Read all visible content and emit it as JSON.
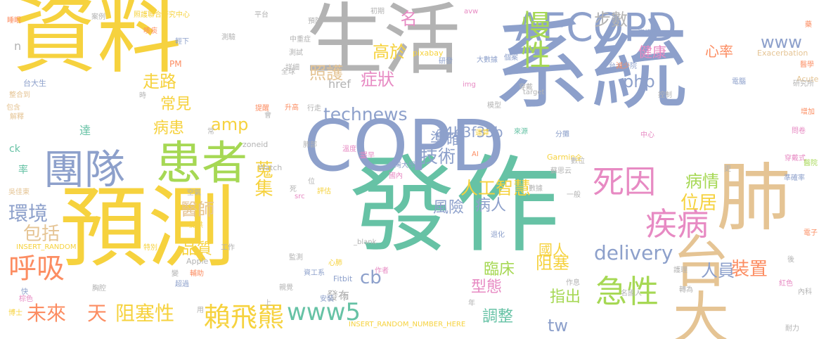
{
  "colors": {
    "yellow": "#f6d23e",
    "teal": "#66c2a5",
    "blue": "#8da0cb",
    "gray": "#b3b3b3",
    "green": "#a6d854",
    "tan": "#e5c494",
    "orange": "#fc8d62",
    "pink": "#e78ac3"
  },
  "words": [
    {
      "text": "資料",
      "color": "yellow"
    },
    {
      "text": "預測",
      "color": "yellow"
    },
    {
      "text": "系統",
      "color": "blue"
    },
    {
      "text": "發作",
      "color": "teal"
    },
    {
      "text": "生活",
      "color": "gray"
    },
    {
      "text": "COPD",
      "color": "blue"
    },
    {
      "text": "AECOPD",
      "color": "blue"
    },
    {
      "text": "肺",
      "color": "tan"
    },
    {
      "text": "台大",
      "color": "tan"
    },
    {
      "text": "患者",
      "color": "green"
    },
    {
      "text": "團隊",
      "color": "blue"
    },
    {
      "text": "慢性",
      "color": "green"
    },
    {
      "text": "死因",
      "color": "pink"
    },
    {
      "text": "疾病",
      "color": "pink"
    },
    {
      "text": "急性",
      "color": "green"
    },
    {
      "text": "呼吸",
      "color": "orange"
    },
    {
      "text": "賴飛羆",
      "color": "yellow"
    },
    {
      "text": "環境",
      "color": "blue"
    },
    {
      "text": "未來",
      "color": "orange"
    },
    {
      "text": "天",
      "color": "orange"
    },
    {
      "text": "阻塞性",
      "color": "yellow"
    },
    {
      "text": "www5",
      "color": "teal"
    },
    {
      "text": "technews",
      "color": "blue"
    },
    {
      "text": "delivery",
      "color": "blue"
    },
    {
      "text": "位居",
      "color": "yellow"
    },
    {
      "text": "病情",
      "color": "green"
    },
    {
      "text": "裝置",
      "color": "orange"
    },
    {
      "text": "人員",
      "color": "blue"
    },
    {
      "text": "國人",
      "color": "yellow"
    },
    {
      "text": "阻塞",
      "color": "yellow"
    },
    {
      "text": "人工智慧",
      "color": "yellow"
    },
    {
      "text": "技術",
      "color": "blue"
    },
    {
      "text": "準確",
      "color": "blue"
    },
    {
      "text": "風險",
      "color": "blue"
    },
    {
      "text": "病人",
      "color": "blue"
    },
    {
      "text": "臨床",
      "color": "green"
    },
    {
      "text": "型態",
      "color": "pink"
    },
    {
      "text": "指出",
      "color": "green"
    },
    {
      "text": "調整",
      "color": "teal"
    },
    {
      "text": "tw",
      "color": "blue"
    },
    {
      "text": "cb",
      "color": "blue"
    },
    {
      "text": "醫師",
      "color": "tan"
    },
    {
      "text": "品質",
      "color": "yellow"
    },
    {
      "text": "包括",
      "color": "tan"
    },
    {
      "text": "蒐集",
      "color": "yellow"
    },
    {
      "text": "amp",
      "color": "yellow"
    },
    {
      "text": "病患",
      "color": "yellow"
    },
    {
      "text": "走路",
      "color": "yellow"
    },
    {
      "text": "照護",
      "color": "tan"
    },
    {
      "text": "常見",
      "color": "yellow"
    },
    {
      "text": "高於",
      "color": "yellow"
    },
    {
      "text": "症狀",
      "color": "pink"
    },
    {
      "text": "a4b3f35b",
      "color": "blue"
    },
    {
      "text": "php",
      "color": "blue"
    },
    {
      "text": "健康",
      "color": "pink"
    },
    {
      "text": "心率",
      "color": "orange"
    },
    {
      "text": "www",
      "color": "blue"
    },
    {
      "text": "步數",
      "color": "gray"
    },
    {
      "text": "名",
      "color": "pink"
    },
    {
      "text": "href",
      "color": "gray"
    },
    {
      "text": "發布",
      "color": "gray"
    },
    {
      "text": "率",
      "color": "teal"
    },
    {
      "text": "ck",
      "color": "teal"
    },
    {
      "text": "達",
      "color": "teal"
    },
    {
      "text": "n",
      "color": "gray"
    },
    {
      "text": "PM",
      "color": "orange"
    },
    {
      "text": "台大生",
      "color": "blue"
    },
    {
      "text": "INSERT_RANDOM",
      "color": "yellow"
    },
    {
      "text": "INSERT_RANDOM_NUMBER_HERE",
      "color": "yellow"
    },
    {
      "text": "Exacerbation",
      "color": "tan"
    },
    {
      "text": "Garmin",
      "color": "yellow"
    },
    {
      "text": "Fitbit",
      "color": "blue"
    },
    {
      "text": "Apple",
      "color": "gray"
    },
    {
      "text": "Watch",
      "color": "gray"
    },
    {
      "text": "zoneid",
      "color": "gray"
    },
    {
      "text": "pixabay",
      "color": "yellow"
    },
    {
      "text": "avw",
      "color": "pink"
    },
    {
      "text": "img",
      "color": "pink"
    },
    {
      "text": "target",
      "color": "gray"
    },
    {
      "text": "src",
      "color": "pink"
    },
    {
      "text": "_blank",
      "color": "gray"
    },
    {
      "text": "Acute",
      "color": "tan"
    },
    {
      "text": "AI",
      "color": "orange"
    },
    {
      "text": "台灣大學",
      "color": "blue"
    },
    {
      "text": "蘇思云",
      "color": "gray"
    },
    {
      "text": "案例",
      "color": "gray"
    },
    {
      "text": "照護聯合研究中心",
      "color": "yellow"
    },
    {
      "text": "平台",
      "color": "gray"
    },
    {
      "text": "初期",
      "color": "gray"
    },
    {
      "text": "睡眠",
      "color": "orange"
    },
    {
      "text": "咳痰",
      "color": "orange"
    },
    {
      "text": "藥",
      "color": "orange"
    },
    {
      "text": "醫學",
      "color": "orange"
    },
    {
      "text": "研究所",
      "color": "gray"
    },
    {
      "text": "穿戴式",
      "color": "pink"
    },
    {
      "text": "準確率",
      "color": "blue"
    },
    {
      "text": "電子",
      "color": "orange"
    },
    {
      "text": "內科",
      "color": "gray"
    },
    {
      "text": "耐力",
      "color": "gray"
    },
    {
      "text": "紅色",
      "color": "pink"
    },
    {
      "text": "轉為",
      "color": "gray"
    },
    {
      "text": "名國人",
      "color": "gray"
    },
    {
      "text": "護理",
      "color": "gray"
    },
    {
      "text": "安裝",
      "color": "blue"
    },
    {
      "text": "作者",
      "color": "pink"
    },
    {
      "text": "資工系",
      "color": "blue"
    },
    {
      "text": "監測",
      "color": "gray"
    },
    {
      "text": "評估",
      "color": "yellow"
    },
    {
      "text": "工作",
      "color": "gray"
    },
    {
      "text": "特別",
      "color": "yellow"
    },
    {
      "text": "輔助",
      "color": "orange"
    },
    {
      "text": "超過",
      "color": "blue"
    },
    {
      "text": "胸腔",
      "color": "gray"
    },
    {
      "text": "博士",
      "color": "yellow"
    },
    {
      "text": "空氣",
      "color": "gray"
    },
    {
      "text": "提供",
      "color": "yellow"
    },
    {
      "text": "提醒",
      "color": "orange"
    },
    {
      "text": "行走",
      "color": "gray"
    },
    {
      "text": "詳細",
      "color": "gray"
    },
    {
      "text": "研發",
      "color": "blue"
    },
    {
      "text": "全球",
      "color": "gray"
    },
    {
      "text": "大數據",
      "color": "blue"
    },
    {
      "text": "台大醫院",
      "color": "blue"
    },
    {
      "text": "資訊學",
      "color": "blue"
    },
    {
      "text": "預防",
      "color": "gray"
    },
    {
      "text": "測驗",
      "color": "gray"
    },
    {
      "text": "中重症",
      "color": "gray"
    },
    {
      "text": "測試",
      "color": "gray"
    },
    {
      "text": "個案",
      "color": "blue"
    },
    {
      "text": "穿戴",
      "color": "gray"
    },
    {
      "text": "模型",
      "color": "gray"
    },
    {
      "text": "分攤",
      "color": "blue"
    },
    {
      "text": "來源",
      "color": "teal"
    },
    {
      "text": "運算",
      "color": "yellow"
    },
    {
      "text": "數位",
      "color": "gray"
    },
    {
      "text": "升高",
      "color": "orange"
    },
    {
      "text": "肺部",
      "color": "gray"
    },
    {
      "text": "溫度",
      "color": "pink"
    },
    {
      "text": "提早",
      "color": "pink"
    },
    {
      "text": "退化",
      "color": "blue"
    },
    {
      "text": "電腦",
      "color": "blue"
    },
    {
      "text": "中心",
      "color": "pink"
    },
    {
      "text": "減少",
      "color": "orange"
    },
    {
      "text": "醫院",
      "color": "green"
    },
    {
      "text": "增加",
      "color": "orange"
    },
    {
      "text": "問卷",
      "color": "pink"
    },
    {
      "text": "整合到",
      "color": "tan"
    },
    {
      "text": "包含",
      "color": "tan"
    },
    {
      "text": "解釋",
      "color": "tan"
    },
    {
      "text": "吳佳東",
      "color": "tan"
    },
    {
      "text": "輕下",
      "color": "blue"
    },
    {
      "text": "控制",
      "color": "gray"
    },
    {
      "text": "親覺",
      "color": "gray"
    },
    {
      "text": "心肺",
      "color": "yellow"
    },
    {
      "text": "作息",
      "color": "gray"
    },
    {
      "text": "棕色",
      "color": "pink"
    },
    {
      "text": "一般",
      "color": "gray"
    },
    {
      "text": "國內",
      "color": "pink"
    },
    {
      "text": "死",
      "color": "gray"
    },
    {
      "text": "位",
      "color": "gray"
    },
    {
      "text": "常",
      "color": "gray"
    },
    {
      "text": "時",
      "color": "gray"
    },
    {
      "text": "後",
      "color": "gray"
    },
    {
      "text": "用",
      "color": "gray"
    },
    {
      "text": "會",
      "color": "gray"
    },
    {
      "text": "快",
      "color": "blue"
    },
    {
      "text": "次",
      "color": "gray"
    },
    {
      "text": "年",
      "color": "gray"
    },
    {
      "text": "更",
      "color": "gray"
    },
    {
      "text": "數據",
      "color": "gray"
    },
    {
      "text": "變",
      "color": "gray"
    },
    {
      "text": "上",
      "color": "gray"
    },
    {
      "text": "三",
      "color": "pink"
    },
    {
      "text": "全",
      "color": "yellow"
    }
  ]
}
